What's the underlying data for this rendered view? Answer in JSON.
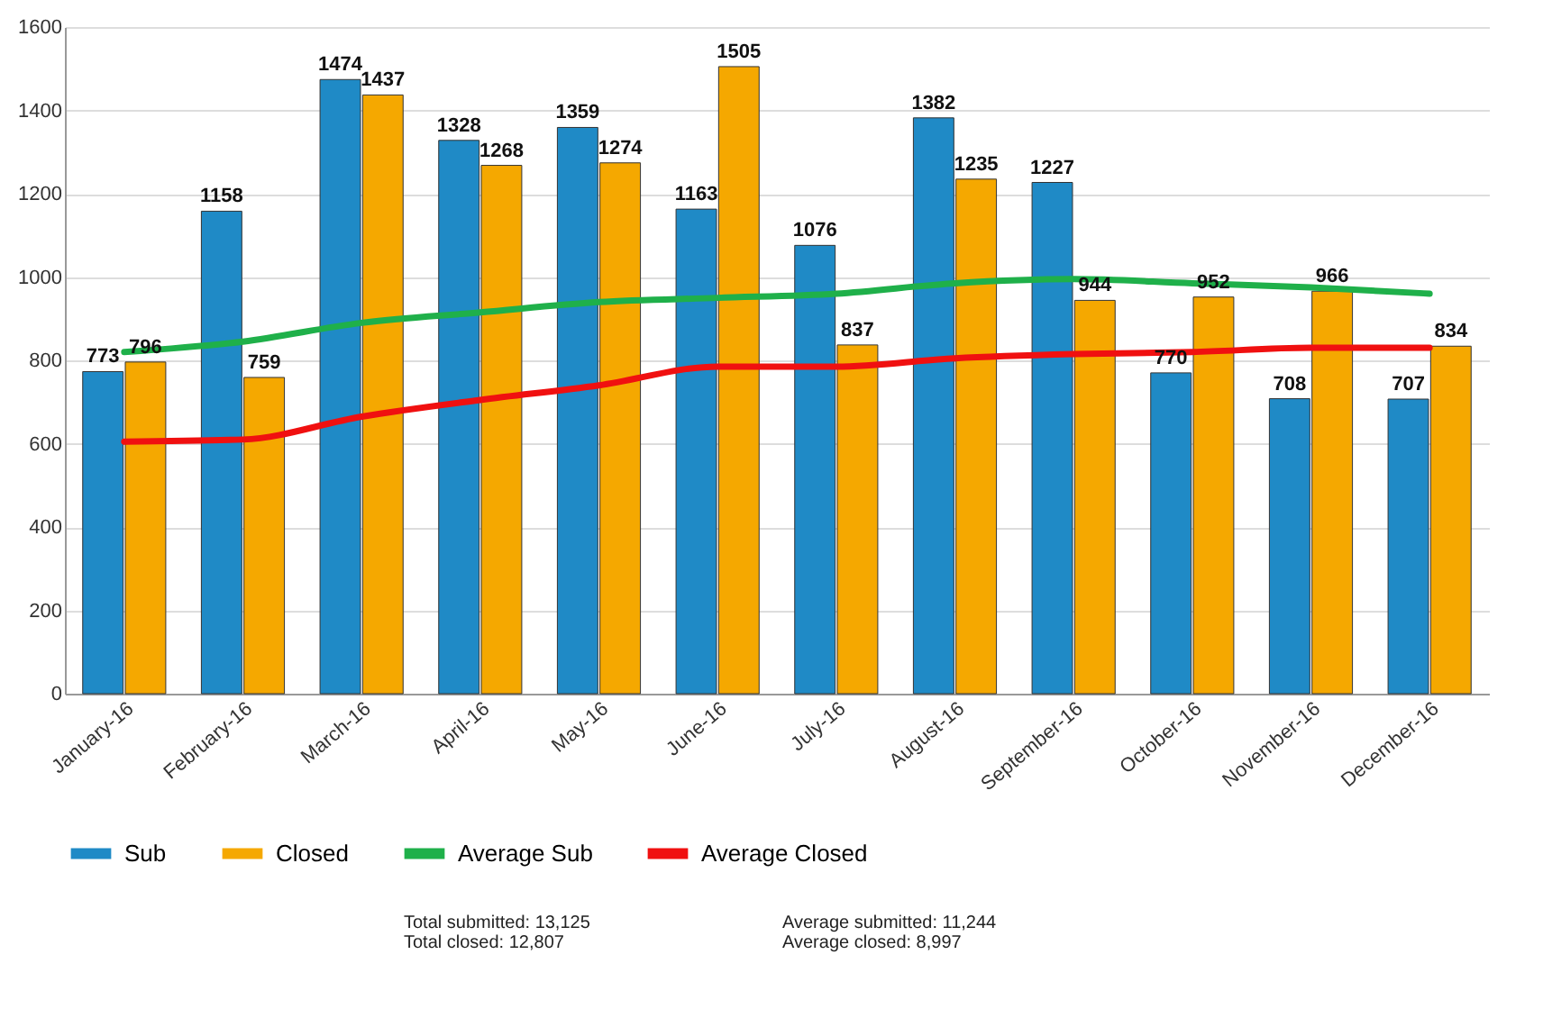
{
  "chart_data": {
    "type": "bar",
    "categories": [
      "January-16",
      "February-16",
      "March-16",
      "April-16",
      "May-16",
      "June-16",
      "July-16",
      "August-16",
      "September-16",
      "October-16",
      "November-16",
      "December-16"
    ],
    "series": [
      {
        "name": "Sub",
        "color": "#1f8ac6",
        "values": [
          773,
          1158,
          1474,
          1328,
          1359,
          1163,
          1076,
          1382,
          1227,
          770,
          708,
          707
        ],
        "value_labels": [
          "773",
          "1158",
          "1474",
          "1328",
          "1359",
          "1163",
          "1076",
          "1382",
          "1227",
          "770",
          "708",
          "707"
        ]
      },
      {
        "name": "Closed",
        "color": "#f5a800",
        "values": [
          796,
          759,
          1437,
          1268,
          1274,
          1505,
          837,
          1235,
          944,
          952,
          966,
          834
        ],
        "value_labels": [
          "796",
          "759",
          "1437",
          "1268",
          "1274",
          "1505",
          "837",
          "1235",
          "944",
          "952",
          "966",
          "834"
        ]
      },
      {
        "name": "Average Sub",
        "type": "line",
        "color": "#1fb04a",
        "values": [
          820,
          845,
          890,
          915,
          940,
          950,
          960,
          985,
          995,
          985,
          975,
          960
        ]
      },
      {
        "name": "Average Closed",
        "type": "line",
        "color": "#f01010",
        "values": [
          605,
          610,
          665,
          705,
          740,
          785,
          785,
          805,
          815,
          820,
          830,
          830
        ]
      }
    ],
    "ylim": [
      0,
      1600
    ],
    "yticks": [
      0,
      200,
      400,
      600,
      800,
      1000,
      1200,
      1400,
      1600
    ],
    "grid": "y",
    "legend": "bottom",
    "annotations": [
      "Total submitted: 13,125",
      "Total closed: 12,807",
      "Average submitted: 11,244",
      "Average closed: 8,997"
    ]
  }
}
